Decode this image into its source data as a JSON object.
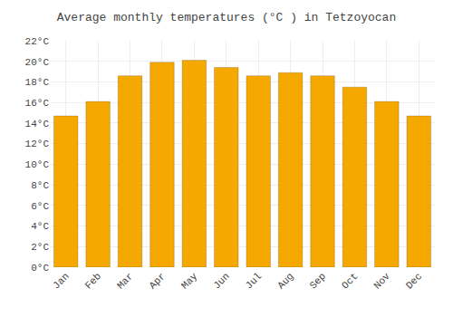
{
  "chart_data": {
    "type": "bar",
    "title": "Average monthly temperatures (°C ) in Tetzoyocan",
    "categories": [
      "Jan",
      "Feb",
      "Mar",
      "Apr",
      "May",
      "Jun",
      "Jul",
      "Aug",
      "Sep",
      "Oct",
      "Nov",
      "Dec"
    ],
    "values": [
      14.7,
      16.1,
      18.6,
      19.9,
      20.1,
      19.4,
      18.6,
      18.9,
      18.6,
      17.5,
      16.1,
      14.7
    ],
    "color": "#F5A800",
    "ylim": [
      0,
      22
    ],
    "yticks": [
      {
        "value": 0,
        "label": "0°C"
      },
      {
        "value": 2,
        "label": "2°C"
      },
      {
        "value": 4,
        "label": "4°C"
      },
      {
        "value": 6,
        "label": "6°C"
      },
      {
        "value": 8,
        "label": "8°C"
      },
      {
        "value": 10,
        "label": "10°C"
      },
      {
        "value": 12,
        "label": "12°C"
      },
      {
        "value": 14,
        "label": "14°C"
      },
      {
        "value": 16,
        "label": "16°C"
      },
      {
        "value": 18,
        "label": "18°C"
      },
      {
        "value": 20,
        "label": "20°C"
      },
      {
        "value": 22,
        "label": "22°C"
      }
    ],
    "grid": true
  }
}
